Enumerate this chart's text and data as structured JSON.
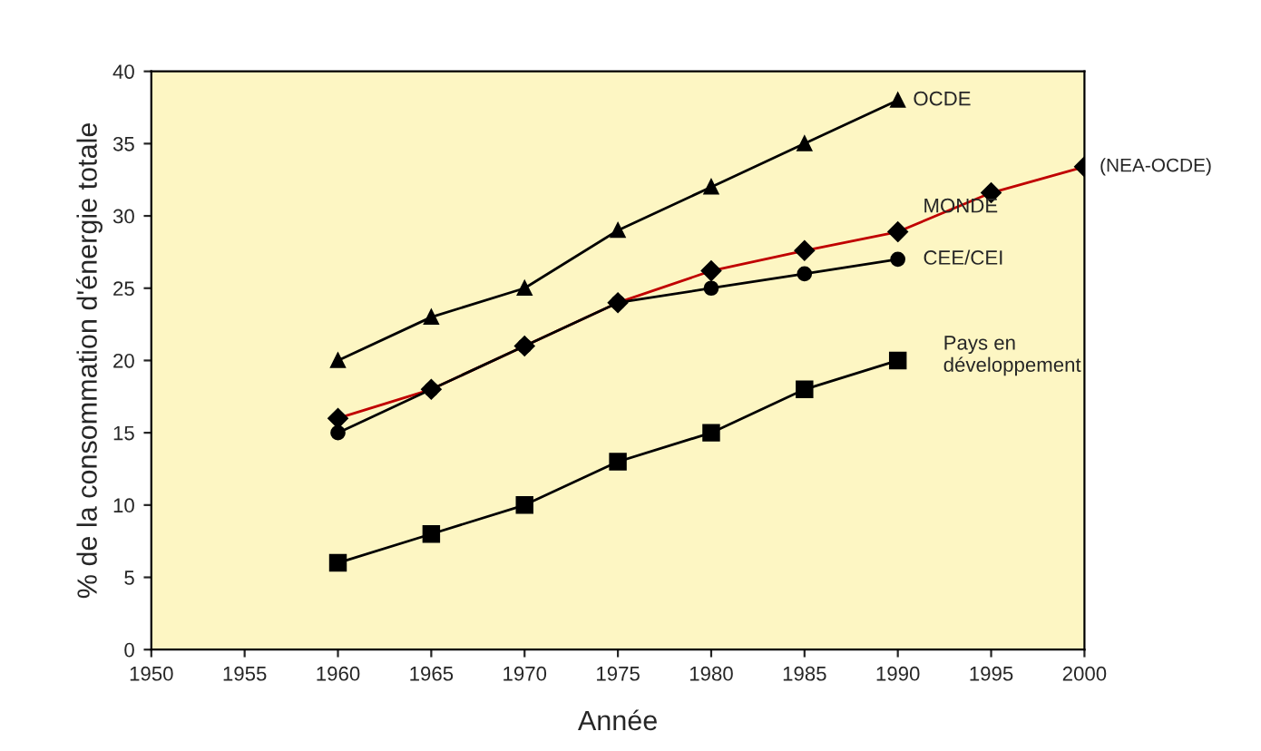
{
  "chart_data": {
    "type": "line",
    "xlabel": "Année",
    "ylabel": "% de la consommation d'énergie totale",
    "x": [
      1960,
      1965,
      1970,
      1975,
      1980,
      1985,
      1990
    ],
    "xlim": [
      1950,
      2000
    ],
    "xticks": [
      1950,
      1955,
      1960,
      1965,
      1970,
      1975,
      1980,
      1985,
      1990,
      1995,
      2000
    ],
    "ylim": [
      0,
      40
    ],
    "yticks": [
      0,
      5,
      10,
      15,
      20,
      25,
      30,
      35,
      40
    ],
    "grid": false,
    "legend": false,
    "line_style": "solid",
    "series": [
      {
        "name": "OCDE",
        "color": "#000000",
        "marker": "triangle",
        "values": [
          20,
          23,
          25,
          29,
          32,
          35,
          38
        ]
      },
      {
        "name": "MONDE",
        "color": "#c00000",
        "marker": "diamond",
        "x": [
          1960,
          1965,
          1970,
          1975,
          1980,
          1985,
          1990,
          1995,
          2000
        ],
        "values": [
          16,
          18,
          21,
          24,
          26.2,
          27.6,
          28.9,
          31.6,
          33.4
        ]
      },
      {
        "name": "CEE/CEI",
        "color": "#000000",
        "marker": "circle",
        "values": [
          15,
          18,
          21,
          24,
          25,
          26,
          27
        ]
      },
      {
        "name": "Pays en\ndéveloppement",
        "color": "#000000",
        "marker": "square",
        "values": [
          6,
          8,
          10,
          13,
          15,
          18,
          20
        ]
      }
    ],
    "annotations": [
      {
        "text": "(NEA-OCDE)",
        "x": 2000,
        "y": 33.4
      }
    ]
  }
}
